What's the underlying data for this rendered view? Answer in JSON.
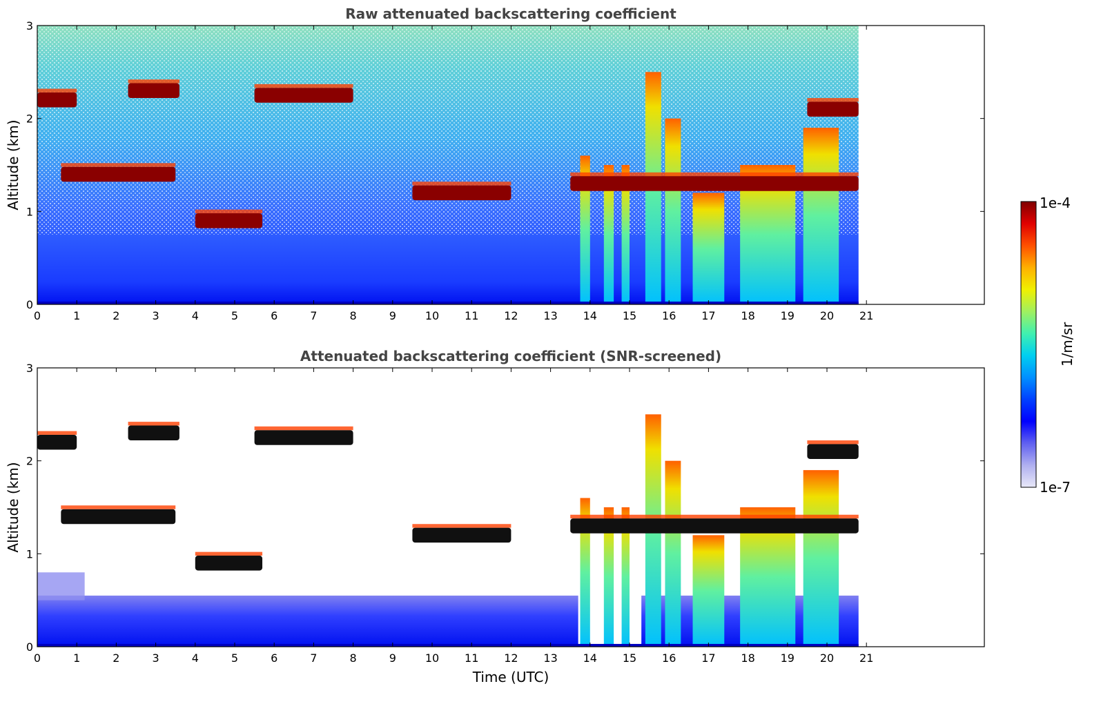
{
  "chart_data": [
    {
      "type": "heatmap",
      "title": "Raw attenuated backscattering coefficient",
      "xlabel": "",
      "ylabel": "Altitude (km)",
      "xlim": [
        0,
        24
      ],
      "ylim": [
        0,
        3
      ],
      "x_ticks": [
        "0",
        "1",
        "2",
        "3",
        "4",
        "5",
        "6",
        "7",
        "8",
        "9",
        "10",
        "11",
        "12",
        "13",
        "14",
        "15",
        "16",
        "17",
        "18",
        "19",
        "20",
        "21"
      ],
      "y_ticks": [
        "0",
        "1",
        "2",
        "3"
      ],
      "data_end_time": 20.8,
      "layers": [
        {
          "t0": 0.0,
          "t1": 1.0,
          "alt": 2.2,
          "value": "1e-4"
        },
        {
          "t0": 2.3,
          "t1": 3.6,
          "alt": 2.3,
          "value": "1e-4"
        },
        {
          "t0": 5.5,
          "t1": 8.0,
          "alt": 2.25,
          "value": "1e-4"
        },
        {
          "t0": 0.6,
          "t1": 3.5,
          "alt": 1.4,
          "value": "1e-4"
        },
        {
          "t0": 4.0,
          "t1": 5.7,
          "alt": 0.9,
          "value": "1e-4"
        },
        {
          "t0": 9.5,
          "t1": 12.0,
          "alt": 1.2,
          "value": "1e-4"
        },
        {
          "t0": 13.5,
          "t1": 20.8,
          "alt": 1.3,
          "value": "1e-4"
        },
        {
          "t0": 19.5,
          "t1": 20.8,
          "alt": 2.1,
          "value": "1e-4"
        }
      ]
    },
    {
      "type": "heatmap",
      "title": "Attenuated backscattering coefficient (SNR-screened)",
      "xlabel": "Time (UTC)",
      "ylabel": "Altitude (km)",
      "xlim": [
        0,
        24
      ],
      "ylim": [
        0,
        3
      ],
      "x_ticks": [
        "0",
        "1",
        "2",
        "3",
        "4",
        "5",
        "6",
        "7",
        "8",
        "9",
        "10",
        "11",
        "12",
        "13",
        "14",
        "15",
        "16",
        "17",
        "18",
        "19",
        "20",
        "21"
      ],
      "y_ticks": [
        "0",
        "1",
        "2",
        "3"
      ],
      "data_end_time": 20.8
    }
  ],
  "colorbar": {
    "label": "1/m/sr",
    "max_label": "1e-4",
    "min_label": "1e-7",
    "colors": [
      "#e8e8f8",
      "#b0b0f0",
      "#6060f0",
      "#0000ff",
      "#0040ff",
      "#0090ff",
      "#00d0f0",
      "#40f0b0",
      "#a0f060",
      "#f0f000",
      "#ffb000",
      "#ff5000",
      "#e00000",
      "#800000"
    ]
  }
}
